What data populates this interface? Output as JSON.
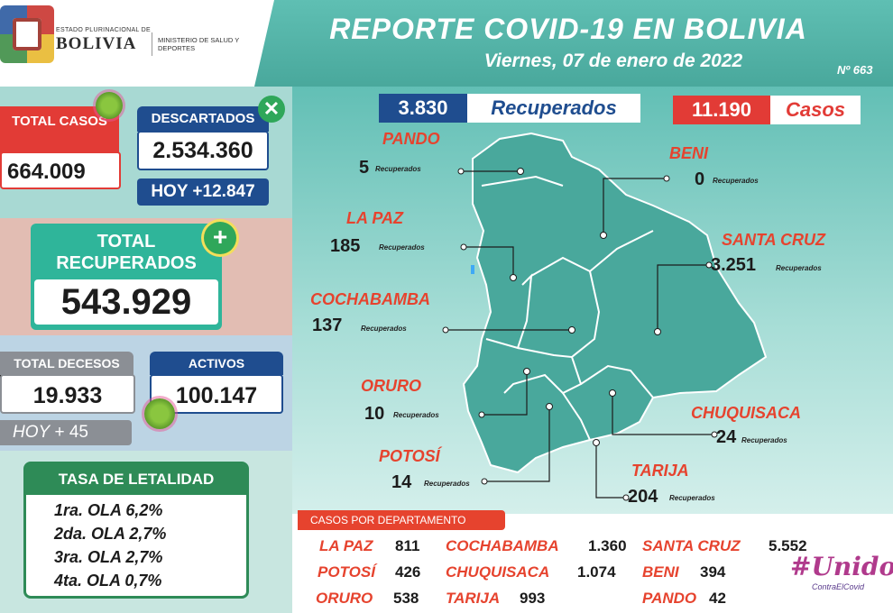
{
  "header": {
    "logo_estado": "ESTADO PLURINACIONAL DE",
    "logo_bolivia": "BOLIVIA",
    "logo_ministerio": "MINISTERIO DE SALUD Y DEPORTES",
    "title": "REPORTE COVID-19 EN BOLIVIA",
    "subtitle": "Viernes, 07 de enero de 2022",
    "report_number": "Nº 663"
  },
  "left": {
    "total_casos_label": "TOTAL CASOS",
    "total_casos_value": "664.009",
    "descartados_label": "DESCARTADOS",
    "descartados_value": "2.534.360",
    "hoy_descartados": "HOY +12.847",
    "total_recuperados_label": "TOTAL RECUPERADOS",
    "total_recuperados_value": "543.929",
    "total_decesos_label": "TOTAL DECESOS",
    "total_decesos_value": "19.933",
    "hoy_decesos_word": "HOY",
    "hoy_decesos_value": "+ 45",
    "activos_label": "ACTIVOS",
    "activos_value": "100.147",
    "tasa_label": "TASA DE LETALIDAD",
    "olas": [
      "1ra. OLA 6,2%",
      "2da. OLA 2,7%",
      "3ra. OLA 2,7%",
      "4ta. OLA 0,7%"
    ]
  },
  "map": {
    "recuperados_num": "3.830",
    "recuperados_word": "Recuperados",
    "casos_num": "11.190",
    "casos_word": "Casos",
    "rec_small": "Recuperados",
    "departments": [
      {
        "name": "PANDO",
        "value": "5"
      },
      {
        "name": "BENI",
        "value": "0"
      },
      {
        "name": "LA PAZ",
        "value": "185"
      },
      {
        "name": "SANTA CRUZ",
        "value": "3.251"
      },
      {
        "name": "COCHABAMBA",
        "value": "137"
      },
      {
        "name": "ORURO",
        "value": "10"
      },
      {
        "name": "CHUQUISACA",
        "value": "24"
      },
      {
        "name": "POTOSÍ",
        "value": "14"
      },
      {
        "name": "TARIJA",
        "value": "204"
      }
    ]
  },
  "casos_dep": {
    "label": "CASOS POR DEPARTAMENTO",
    "items": [
      {
        "name": "LA PAZ",
        "value": "811"
      },
      {
        "name": "COCHABAMBA",
        "value": "1.360"
      },
      {
        "name": "SANTA CRUZ",
        "value": "5.552"
      },
      {
        "name": "POTOSÍ",
        "value": "426"
      },
      {
        "name": "CHUQUISACA",
        "value": "1.074"
      },
      {
        "name": "BENI",
        "value": "394"
      },
      {
        "name": "ORURO",
        "value": "538"
      },
      {
        "name": "TARIJA",
        "value": "993"
      },
      {
        "name": "PANDO",
        "value": "42"
      }
    ]
  },
  "brand": {
    "unidos": "#Unidos",
    "unidos_sub": "ContraElCovid"
  },
  "colors": {
    "teal": "#49a89c",
    "red": "#e23b36",
    "navy": "#1f4d8f",
    "green": "#2fb59a",
    "orange_red": "#e6432e"
  }
}
